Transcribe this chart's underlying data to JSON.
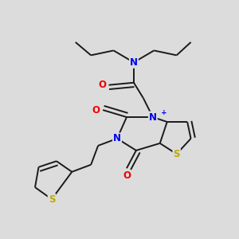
{
  "bg_color": "#dcdcdc",
  "bond_color": "#1a1a1a",
  "bond_width": 1.4,
  "atom_colors": {
    "N": "#0000ee",
    "O": "#ee0000",
    "S": "#bbaa00",
    "plus": "#0000ee"
  },
  "font_size_atom": 8.5,
  "font_size_plus": 6.5
}
